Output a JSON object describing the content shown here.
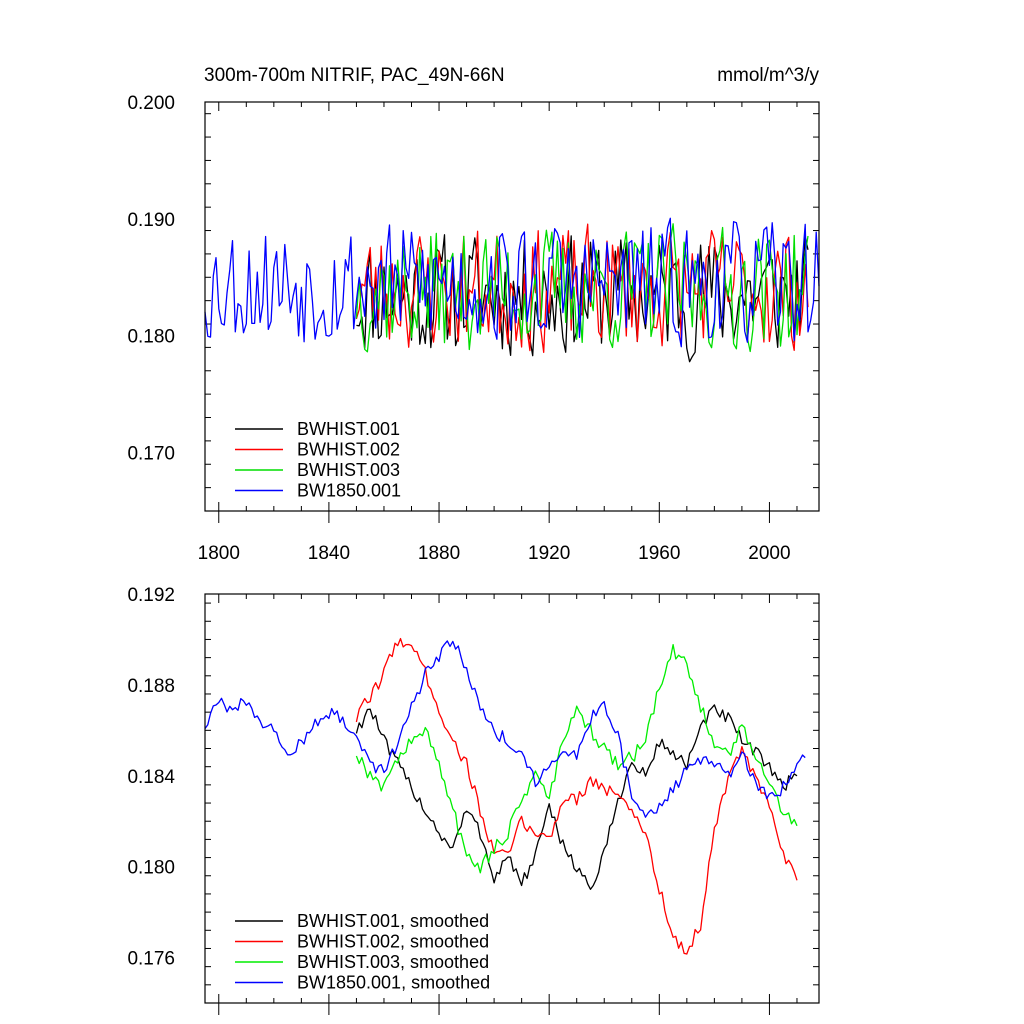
{
  "chart_data": [
    {
      "type": "line",
      "title": "300m-700m NITRIF, PAC_49N-66N",
      "units": "mmol/m^3/y",
      "xlim": [
        1795,
        2018
      ],
      "ylim": [
        0.165,
        0.2
      ],
      "xticks": [
        1800,
        1840,
        1880,
        1920,
        1960,
        2000
      ],
      "yticks": [
        0.17,
        0.18,
        0.19,
        0.2
      ],
      "ytick_labels": [
        "0.170",
        "0.180",
        "0.190",
        "0.200"
      ],
      "legend_position": "bottom-left",
      "series": [
        {
          "name": "BWHIST.001",
          "color": "#000000",
          "x_start": 1850,
          "x_end": 2014,
          "mean": 0.1835,
          "amp": 0.0045,
          "seed": 11
        },
        {
          "name": "BWHIST.002",
          "color": "#ff0000",
          "x_start": 1850,
          "x_end": 2014,
          "mean": 0.184,
          "amp": 0.0045,
          "seed": 23
        },
        {
          "name": "BWHIST.003",
          "color": "#00dd00",
          "x_start": 1850,
          "x_end": 2014,
          "mean": 0.184,
          "amp": 0.0045,
          "seed": 37
        },
        {
          "name": "BW1850.001",
          "color": "#0000ff",
          "x_start": 1795,
          "x_end": 2018,
          "mean": 0.1845,
          "amp": 0.0045,
          "seed": 53
        }
      ]
    },
    {
      "type": "line",
      "title": "",
      "xlim": [
        1795,
        2018
      ],
      "ylim": [
        0.174,
        0.192
      ],
      "xticks": [
        1800,
        1840,
        1880,
        1920,
        1960,
        2000
      ],
      "yticks": [
        0.176,
        0.18,
        0.184,
        0.188,
        0.192
      ],
      "ytick_labels": [
        "0.176",
        "0.180",
        "0.184",
        "0.188",
        "0.192"
      ],
      "legend_position": "bottom-left",
      "series": [
        {
          "name": "BWHIST.001, smoothed",
          "color": "#000000",
          "x": [
            1850,
            1855,
            1860,
            1865,
            1870,
            1875,
            1880,
            1885,
            1890,
            1895,
            1900,
            1905,
            1910,
            1915,
            1920,
            1925,
            1930,
            1935,
            1940,
            1945,
            1950,
            1955,
            1960,
            1965,
            1970,
            1975,
            1980,
            1985,
            1990,
            1995,
            2000,
            2005,
            2010
          ],
          "y": [
            0.186,
            0.187,
            0.1855,
            0.1845,
            0.1835,
            0.1825,
            0.1815,
            0.1808,
            0.1825,
            0.1815,
            0.1795,
            0.1805,
            0.1792,
            0.1805,
            0.1825,
            0.181,
            0.18,
            0.179,
            0.1805,
            0.183,
            0.1845,
            0.184,
            0.1855,
            0.185,
            0.1845,
            0.186,
            0.187,
            0.1865,
            0.1855,
            0.185,
            0.1845,
            0.1835,
            0.184
          ]
        },
        {
          "name": "BWHIST.002, smoothed",
          "color": "#ff0000",
          "x": [
            1850,
            1855,
            1860,
            1865,
            1870,
            1875,
            1880,
            1885,
            1890,
            1895,
            1900,
            1905,
            1910,
            1915,
            1920,
            1925,
            1930,
            1935,
            1940,
            1945,
            1950,
            1955,
            1960,
            1965,
            1970,
            1975,
            1980,
            1985,
            1990,
            1995,
            2000,
            2005,
            2010
          ],
          "y": [
            0.1865,
            0.1875,
            0.1885,
            0.19,
            0.1898,
            0.1885,
            0.187,
            0.1855,
            0.1845,
            0.1825,
            0.1805,
            0.1805,
            0.182,
            0.1815,
            0.1812,
            0.183,
            0.183,
            0.1838,
            0.1835,
            0.183,
            0.1825,
            0.1815,
            0.179,
            0.177,
            0.1762,
            0.1775,
            0.1815,
            0.184,
            0.185,
            0.184,
            0.1825,
            0.1805,
            0.1794
          ]
        },
        {
          "name": "BWHIST.003, smoothed",
          "color": "#00ee00",
          "x": [
            1850,
            1855,
            1860,
            1865,
            1870,
            1875,
            1880,
            1885,
            1890,
            1895,
            1900,
            1905,
            1910,
            1915,
            1920,
            1925,
            1930,
            1935,
            1940,
            1945,
            1950,
            1955,
            1960,
            1965,
            1970,
            1975,
            1980,
            1985,
            1990,
            1995,
            2000,
            2005,
            2010
          ],
          "y": [
            0.185,
            0.184,
            0.1835,
            0.1848,
            0.1855,
            0.186,
            0.1845,
            0.1825,
            0.1805,
            0.18,
            0.1808,
            0.1815,
            0.183,
            0.184,
            0.183,
            0.1855,
            0.1868,
            0.186,
            0.1852,
            0.1845,
            0.1848,
            0.1855,
            0.188,
            0.1895,
            0.1888,
            0.187,
            0.1855,
            0.1848,
            0.1862,
            0.185,
            0.1835,
            0.1825,
            0.1818
          ]
        },
        {
          "name": "BW1850.001, smoothed",
          "color": "#0000ff",
          "x": [
            1795,
            1800,
            1805,
            1810,
            1815,
            1820,
            1825,
            1830,
            1835,
            1840,
            1845,
            1850,
            1855,
            1860,
            1865,
            1870,
            1875,
            1880,
            1885,
            1890,
            1895,
            1900,
            1905,
            1910,
            1915,
            1920,
            1925,
            1930,
            1935,
            1940,
            1945,
            1950,
            1955,
            1960,
            1965,
            1970,
            1975,
            1980,
            1985,
            1990,
            1995,
            2000,
            2005,
            2010,
            2013
          ],
          "y": [
            0.1862,
            0.1872,
            0.1868,
            0.1873,
            0.1865,
            0.186,
            0.185,
            0.1855,
            0.1862,
            0.1868,
            0.1865,
            0.1858,
            0.1845,
            0.1842,
            0.1855,
            0.187,
            0.1885,
            0.1892,
            0.19,
            0.1888,
            0.187,
            0.186,
            0.1855,
            0.185,
            0.1838,
            0.1845,
            0.1852,
            0.1848,
            0.1865,
            0.1872,
            0.1858,
            0.183,
            0.1822,
            0.1825,
            0.1835,
            0.1842,
            0.1848,
            0.1846,
            0.184,
            0.185,
            0.1838,
            0.183,
            0.1835,
            0.1845,
            0.1848
          ]
        }
      ]
    }
  ]
}
